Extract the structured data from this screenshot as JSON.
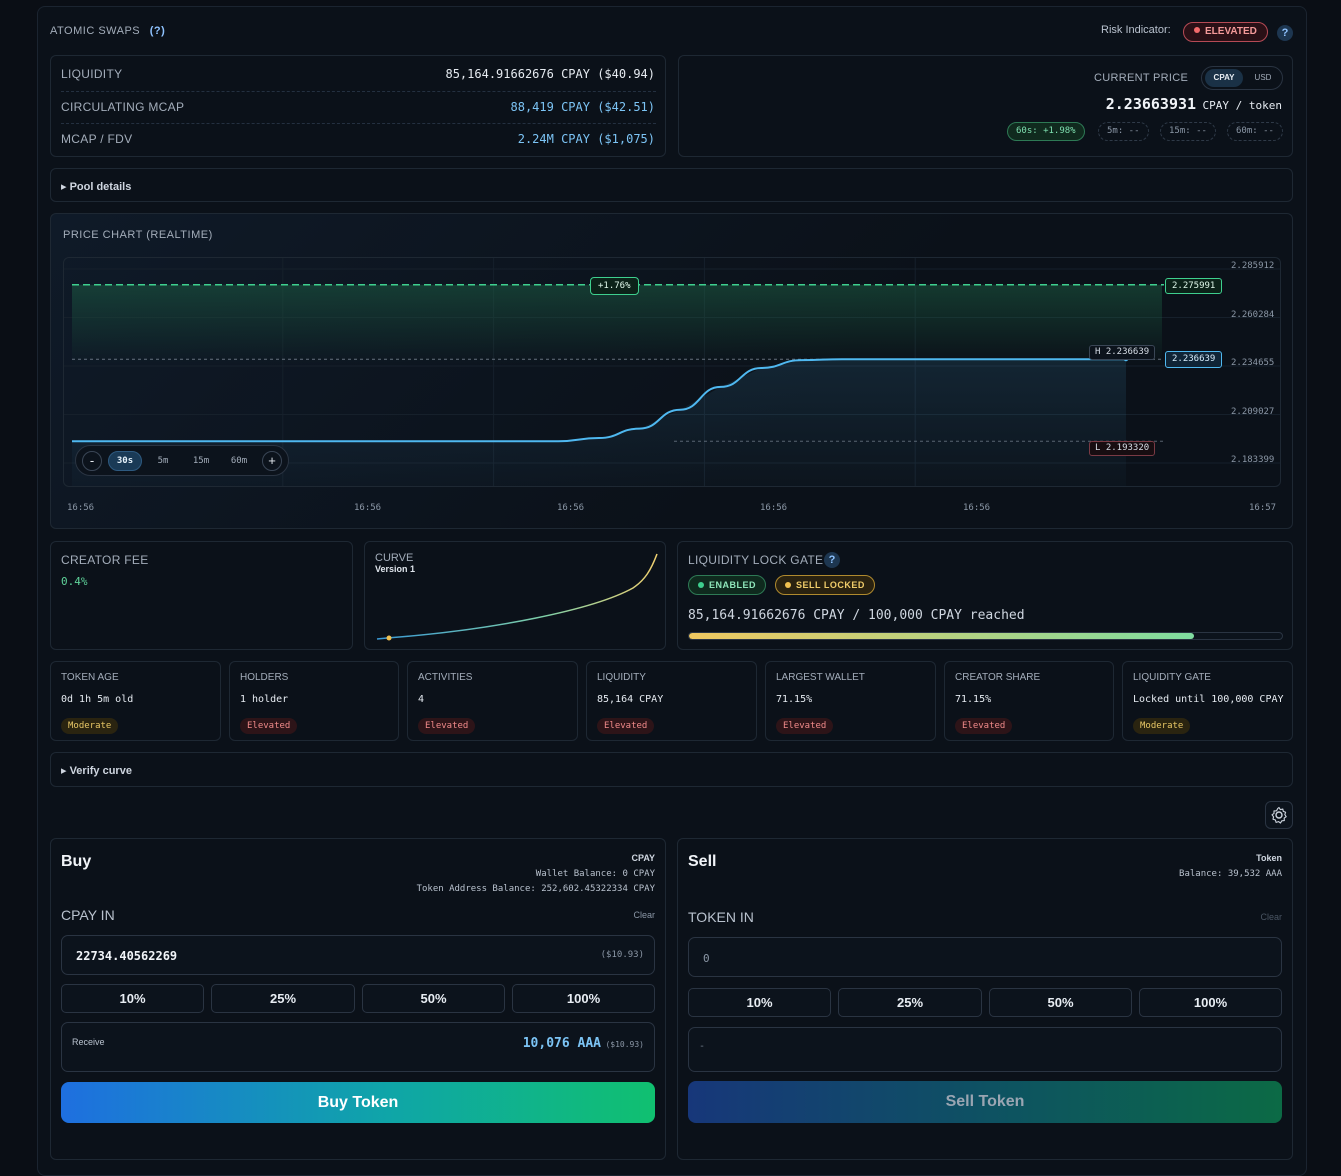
{
  "header": {
    "title": "ATOMIC SWAPS",
    "help": "(?)",
    "risk_label": "Risk Indicator:",
    "risk_value": "ELEVATED",
    "risk_help": "?"
  },
  "stats": {
    "liquidity_label": "LIQUIDITY",
    "liquidity_value": "85,164.91662676 CPAY ($40.94)",
    "mcap_label": "CIRCULATING MCAP",
    "mcap_value": "88,419 CPAY ($42.51)",
    "fdv_label": "MCAP / FDV",
    "fdv_value": "2.24M CPAY ($1,075)"
  },
  "price": {
    "label": "CURRENT PRICE",
    "toggle_cpay": "CPAY",
    "toggle_usd": "USD",
    "value": "2.23663931",
    "unit": "CPAY / token",
    "windows": [
      "60s: +1.98%",
      "5m: --",
      "15m: --",
      "60m: --"
    ]
  },
  "pool_details": "▸ Pool details",
  "chart": {
    "title": "PRICE CHART (REALTIME)",
    "target_change": "+1.76%",
    "target_label": "2.275991",
    "current_label": "2.236639",
    "high_label": "H 2.236639",
    "low_label": "L 2.193320",
    "y_ticks": [
      "2.285912",
      "2.260284",
      "2.234655",
      "2.209027",
      "2.183399"
    ],
    "x_ticks": [
      "16:56",
      "16:56",
      "16:56",
      "16:56",
      "16:56",
      "16:57"
    ],
    "zoom_out": "-",
    "zoom_in": "+",
    "timeframes": [
      "30s",
      "5m",
      "15m",
      "60m"
    ],
    "active_timeframe": "30s"
  },
  "chart_data": {
    "type": "line",
    "title": "PRICE CHART (REALTIME)",
    "xlabel": "",
    "ylabel": "",
    "ylim": [
      2.183399,
      2.285912
    ],
    "x_ticks": [
      "16:56",
      "16:56",
      "16:56",
      "16:56",
      "16:56",
      "16:57"
    ],
    "series": [
      {
        "values": [
          2.19332,
          2.19332,
          2.19332,
          2.19332,
          2.19332,
          2.19332,
          2.19332,
          2.19332,
          2.19332,
          2.19332,
          2.19332,
          2.19332,
          2.19332,
          2.195,
          2.2,
          2.21,
          2.222,
          2.232,
          2.2362,
          2.236639,
          2.236639,
          2.236639,
          2.236639,
          2.236639,
          2.236639,
          2.236639,
          2.236639
        ]
      }
    ],
    "reference_lines": {
      "target": 2.275991,
      "high": 2.236639,
      "low": 2.19332
    },
    "grid": true
  },
  "creator_fee": {
    "label": "CREATOR FEE",
    "value": "0.4%"
  },
  "curve": {
    "label": "CURVE",
    "version": "Version 1"
  },
  "lock_gate": {
    "label": "LIQUIDITY LOCK GATE",
    "help": "?",
    "enabled": "ENABLED",
    "sell_locked": "SELL LOCKED",
    "progress_text": "85,164.91662676 CPAY / 100,000 CPAY reached",
    "progress_fraction": 0.8516
  },
  "metrics": [
    {
      "title": "TOKEN AGE",
      "value": "0d 1h 5m old",
      "badge": "Moderate",
      "level": "moderate"
    },
    {
      "title": "HOLDERS",
      "value": "1 holder",
      "badge": "Elevated",
      "level": "elevated"
    },
    {
      "title": "ACTIVITIES",
      "value": "4",
      "badge": "Elevated",
      "level": "elevated"
    },
    {
      "title": "LIQUIDITY",
      "value": "85,164 CPAY",
      "badge": "Elevated",
      "level": "elevated"
    },
    {
      "title": "LARGEST WALLET",
      "value": "71.15%",
      "badge": "Elevated",
      "level": "elevated"
    },
    {
      "title": "CREATOR SHARE",
      "value": "71.15%",
      "badge": "Elevated",
      "level": "elevated"
    },
    {
      "title": "LIQUIDITY GATE",
      "value": "Locked until 100,000 CPAY",
      "badge": "Moderate",
      "level": "moderate"
    }
  ],
  "verify_curve": "▸ Verify curve",
  "buy": {
    "title": "Buy",
    "currency": "CPAY",
    "wallet_balance": "Wallet Balance: 0 CPAY",
    "token_balance": "Token Address Balance: 252,602.45322334 CPAY",
    "input_label": "CPAY IN",
    "clear": "Clear",
    "input_value": "22734.40562269",
    "input_usd": "($10.93)",
    "percents": [
      "10%",
      "25%",
      "50%",
      "100%"
    ],
    "receive_label": "Receive",
    "receive_value": "10,076 AAA",
    "receive_usd": "($10.93)",
    "button": "Buy Token"
  },
  "sell": {
    "title": "Sell",
    "currency": "Token",
    "balance": "Balance: 39,532 AAA",
    "input_label": "TOKEN IN",
    "clear": "Clear",
    "input_placeholder": "0",
    "percents": [
      "10%",
      "25%",
      "50%",
      "100%"
    ],
    "receive_placeholder": "-",
    "button": "Sell Token"
  },
  "colors": {
    "accent": "#4fb8f0",
    "green": "#3ecf8e",
    "elevated": "#f08a8a",
    "moderate": "#e8c766"
  }
}
